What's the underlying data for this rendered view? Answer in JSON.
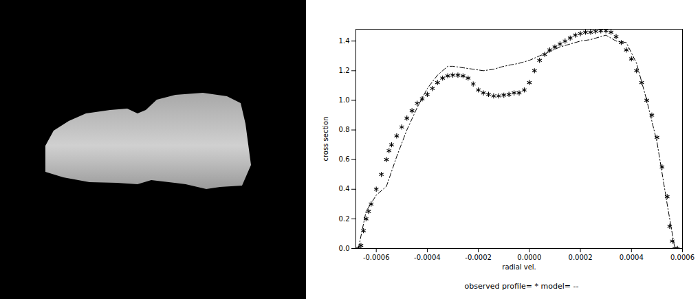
{
  "chart_data": {
    "type": "line",
    "x_label": "radial vel.",
    "y_label": "cross section",
    "caption": "observed profile= * model= --",
    "xlim": [
      -0.00068,
      0.0006
    ],
    "xticks": [
      -0.0006,
      -0.0004,
      -0.0002,
      {
        "value": 0,
        "label": "0.0000"
      },
      0.0002,
      0.0004,
      0.0006
    ],
    "ylim": [
      0,
      1.48
    ],
    "yticks": [
      {
        "value": 0,
        "label": "0.0"
      },
      0.2,
      0.4,
      0.6,
      0.8,
      {
        "value": 1,
        "label": "1.0"
      },
      1.2,
      1.4
    ],
    "grid": false,
    "series": [
      {
        "name": "observed profile",
        "type": "scatter",
        "marker": "asterisk",
        "color": "#000000",
        "x": [
          -0.00067,
          -0.00066,
          -0.00065,
          -0.00064,
          -0.00063,
          -0.00062,
          -0.0006,
          -0.00058,
          -0.00056,
          -0.00055,
          -0.00054,
          -0.00052,
          -0.0005,
          -0.00048,
          -0.00046,
          -0.00044,
          -0.00042,
          -0.0004,
          -0.00038,
          -0.00036,
          -0.00034,
          -0.00032,
          -0.0003,
          -0.00028,
          -0.00026,
          -0.00024,
          -0.00022,
          -0.0002,
          -0.00018,
          -0.00016,
          -0.00014,
          -0.00012,
          -0.0001,
          -8e-05,
          -6e-05,
          -4e-05,
          -2e-05,
          0,
          2e-05,
          4e-05,
          6e-05,
          8e-05,
          0.0001,
          0.00012,
          0.00014,
          0.00016,
          0.00018,
          0.0002,
          0.00022,
          0.00024,
          0.00026,
          0.00028,
          0.0003,
          0.00032,
          0.00034,
          0.00036,
          0.00038,
          0.0004,
          0.00042,
          0.00044,
          0.00046,
          0.00048,
          0.0005,
          0.00052,
          0.00054,
          0.00055,
          0.00056,
          0.00057,
          0.00058
        ],
        "values": [
          0.0,
          0.02,
          0.12,
          0.2,
          0.25,
          0.3,
          0.4,
          0.5,
          0.6,
          0.66,
          0.7,
          0.76,
          0.82,
          0.88,
          0.93,
          0.98,
          1.01,
          1.04,
          1.08,
          1.12,
          1.15,
          1.165,
          1.17,
          1.17,
          1.165,
          1.15,
          1.11,
          1.07,
          1.05,
          1.04,
          1.03,
          1.03,
          1.035,
          1.04,
          1.05,
          1.05,
          1.07,
          1.12,
          1.2,
          1.27,
          1.31,
          1.34,
          1.36,
          1.38,
          1.4,
          1.42,
          1.44,
          1.45,
          1.46,
          1.46,
          1.465,
          1.47,
          1.47,
          1.46,
          1.43,
          1.39,
          1.34,
          1.28,
          1.2,
          1.12,
          1.0,
          0.9,
          0.75,
          0.55,
          0.35,
          0.15,
          0.05,
          0.0,
          0.0
        ]
      },
      {
        "name": "model",
        "type": "line",
        "line_style": "dashdot",
        "color": "#000000",
        "x": [
          -0.00067,
          -0.00064,
          -0.0006,
          -0.00056,
          -0.00052,
          -0.00048,
          -0.00044,
          -0.0004,
          -0.00036,
          -0.00032,
          -0.0003,
          -0.00026,
          -0.00022,
          -0.00018,
          -0.00014,
          -0.0001,
          -4e-05,
          0,
          4e-05,
          8e-05,
          0.00012,
          0.00016,
          0.0002,
          0.00024,
          0.00028,
          0.0003,
          0.00034,
          0.00038,
          0.00042,
          0.00046,
          0.0005,
          0.00054,
          0.00057
        ],
        "values": [
          0.0,
          0.25,
          0.36,
          0.42,
          0.62,
          0.8,
          0.95,
          1.08,
          1.17,
          1.23,
          1.23,
          1.22,
          1.21,
          1.2,
          1.21,
          1.23,
          1.25,
          1.27,
          1.3,
          1.33,
          1.36,
          1.38,
          1.4,
          1.41,
          1.43,
          1.44,
          1.4,
          1.39,
          1.25,
          1.0,
          0.72,
          0.3,
          0.0
        ]
      }
    ]
  }
}
